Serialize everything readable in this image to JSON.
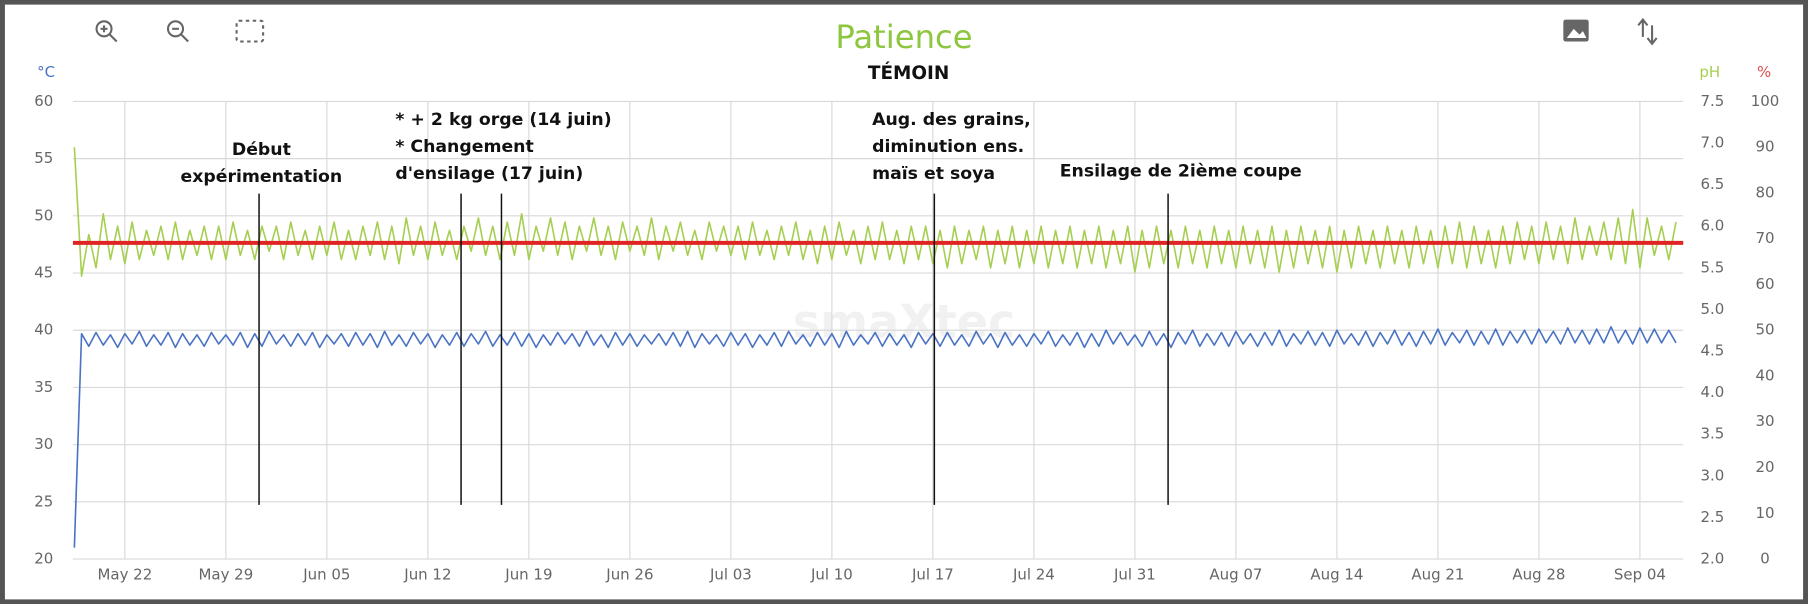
{
  "chart_data": {
    "type": "line",
    "title": "Patience",
    "subtitle": "TÉMOIN",
    "watermark": "smaXtec",
    "y_label": "°C",
    "y2_label": "pH",
    "y3_label": "%",
    "grid": true,
    "xlim": [
      138.4,
      250
    ],
    "xticks": [
      {
        "value": 142,
        "label": "May 22"
      },
      {
        "value": 149,
        "label": "May 29"
      },
      {
        "value": 156,
        "label": "Jun 05"
      },
      {
        "value": 163,
        "label": "Jun 12"
      },
      {
        "value": 170,
        "label": "Jun 19"
      },
      {
        "value": 177,
        "label": "Jun 26"
      },
      {
        "value": 184,
        "label": "Jul 03"
      },
      {
        "value": 191,
        "label": "Jul 10"
      },
      {
        "value": 198,
        "label": "Jul 17"
      },
      {
        "value": 205,
        "label": "Jul 24"
      },
      {
        "value": 212,
        "label": "Jul 31"
      },
      {
        "value": 219,
        "label": "Aug 07"
      },
      {
        "value": 226,
        "label": "Aug 14"
      },
      {
        "value": 233,
        "label": "Aug 21"
      },
      {
        "value": 240,
        "label": "Aug 28"
      },
      {
        "value": 247,
        "label": "Sep 04"
      }
    ],
    "ylim": [
      20,
      60
    ],
    "yticks": [
      20,
      25,
      30,
      35,
      40,
      45,
      50,
      55,
      60
    ],
    "y2lim": [
      2,
      7.5
    ],
    "y2ticks": [
      {
        "value": 2,
        "label": "2.0"
      },
      2.5,
      {
        "value": 3,
        "label": "3.0"
      },
      3.5,
      {
        "value": 4,
        "label": "4.0"
      },
      4.5,
      {
        "value": 5,
        "label": "5.0"
      },
      5.5,
      {
        "value": 6,
        "label": "6.0"
      },
      6.5,
      {
        "value": 7,
        "label": "7.0"
      },
      7.5
    ],
    "y3lim": [
      0,
      100
    ],
    "y3ticks": [
      0,
      10,
      20,
      30,
      40,
      50,
      60,
      70,
      80,
      90,
      100
    ],
    "reference_line": {
      "value": 5.8,
      "axis": "y2",
      "color": "#e02424"
    },
    "annotations": [
      {
        "lines": [
          "Début",
          "expérimentation"
        ],
        "x": [
          151.3
        ]
      },
      {
        "lines": [
          "* + 2 kg orge (14 juin)",
          "* Changement",
          "d'ensilage (17 juin)"
        ],
        "x": [
          165.3,
          168.1
        ]
      },
      {
        "lines": [
          "Aug. des grains,",
          "diminution ens.",
          "maïs et soya"
        ],
        "x": [
          198.1
        ]
      },
      {
        "lines": [
          "Ensilage de 2ième coupe"
        ],
        "x": [
          214.3
        ]
      }
    ],
    "x": [
      138.5,
      139,
      139.5,
      140,
      140.5,
      141,
      141.5,
      142,
      142.5,
      143,
      143.5,
      144,
      144.5,
      145,
      145.5,
      146,
      146.5,
      147,
      147.5,
      148,
      148.5,
      149,
      149.5,
      150,
      150.5,
      151,
      151.5,
      152,
      152.5,
      153,
      153.5,
      154,
      154.5,
      155,
      155.5,
      156,
      156.5,
      157,
      157.5,
      158,
      158.5,
      159,
      159.5,
      160,
      160.5,
      161,
      161.5,
      162,
      162.5,
      163,
      163.5,
      164,
      164.5,
      165,
      165.5,
      166,
      166.5,
      167,
      167.5,
      168,
      168.5,
      169,
      169.5,
      170,
      170.5,
      171,
      171.5,
      172,
      172.5,
      173,
      173.5,
      174,
      174.5,
      175,
      175.5,
      176,
      176.5,
      177,
      177.5,
      178,
      178.5,
      179,
      179.5,
      180,
      180.5,
      181,
      181.5,
      182,
      182.5,
      183,
      183.5,
      184,
      184.5,
      185,
      185.5,
      186,
      186.5,
      187,
      187.5,
      188,
      188.5,
      189,
      189.5,
      190,
      190.5,
      191,
      191.5,
      192,
      192.5,
      193,
      193.5,
      194,
      194.5,
      195,
      195.5,
      196,
      196.5,
      197,
      197.5,
      198,
      198.5,
      199,
      199.5,
      200,
      200.5,
      201,
      201.5,
      202,
      202.5,
      203,
      203.5,
      204,
      204.5,
      205,
      205.5,
      206,
      206.5,
      207,
      207.5,
      208,
      208.5,
      209,
      209.5,
      210,
      210.5,
      211,
      211.5,
      212,
      212.5,
      213,
      213.5,
      214,
      214.5,
      215,
      215.5,
      216,
      216.5,
      217,
      217.5,
      218,
      218.5,
      219,
      219.5,
      220,
      220.5,
      221,
      221.5,
      222,
      222.5,
      223,
      223.5,
      224,
      224.5,
      225,
      225.5,
      226,
      226.5,
      227,
      227.5,
      228,
      228.5,
      229,
      229.5,
      230,
      230.5,
      231,
      231.5,
      232,
      232.5,
      233,
      233.5,
      234,
      234.5,
      235,
      235.5,
      236,
      236.5,
      237,
      237.5,
      238,
      238.5,
      239,
      239.5,
      240,
      240.5,
      241,
      241.5,
      242,
      242.5,
      243,
      243.5,
      244,
      244.5,
      245,
      245.5,
      246,
      246.5,
      247,
      247.5,
      248,
      248.5,
      249,
      249.5
    ],
    "series": [
      {
        "name": "pH",
        "axis": "y2",
        "color": "#a6cf52",
        "values": [
          6.95,
          5.4,
          5.9,
          5.5,
          6.15,
          5.6,
          6.0,
          5.55,
          6.05,
          5.6,
          5.95,
          5.65,
          6.0,
          5.6,
          6.05,
          5.6,
          5.95,
          5.65,
          6.0,
          5.6,
          6.0,
          5.6,
          6.05,
          5.65,
          5.95,
          5.6,
          6.0,
          5.7,
          6.0,
          5.6,
          6.05,
          5.65,
          5.95,
          5.6,
          6.0,
          5.65,
          6.05,
          5.6,
          5.95,
          5.6,
          6.0,
          5.65,
          6.05,
          5.6,
          6.0,
          5.55,
          6.1,
          5.65,
          6.0,
          5.6,
          6.05,
          5.65,
          5.95,
          5.6,
          6.0,
          5.7,
          6.1,
          5.65,
          6.0,
          5.6,
          6.05,
          5.65,
          6.15,
          5.6,
          6.0,
          5.7,
          6.1,
          5.65,
          6.05,
          5.6,
          6.0,
          5.7,
          6.1,
          5.65,
          6.0,
          5.6,
          6.05,
          5.7,
          6.0,
          5.65,
          6.1,
          5.6,
          6.0,
          5.7,
          6.05,
          5.65,
          5.95,
          5.6,
          6.05,
          5.7,
          6.0,
          5.65,
          6.0,
          5.6,
          6.05,
          5.65,
          5.95,
          5.6,
          6.0,
          5.65,
          6.05,
          5.6,
          5.95,
          5.55,
          6.0,
          5.6,
          6.05,
          5.65,
          5.95,
          5.55,
          6.0,
          5.6,
          6.05,
          5.6,
          5.95,
          5.55,
          6.0,
          5.6,
          6.0,
          5.55,
          5.95,
          5.5,
          6.0,
          5.55,
          5.95,
          5.6,
          6.0,
          5.5,
          5.95,
          5.55,
          6.0,
          5.5,
          5.95,
          5.55,
          6.0,
          5.5,
          5.95,
          5.55,
          6.0,
          5.5,
          5.95,
          5.55,
          6.0,
          5.5,
          5.95,
          5.55,
          6.0,
          5.45,
          5.95,
          5.5,
          6.0,
          5.55,
          5.95,
          5.5,
          6.0,
          5.55,
          5.95,
          5.5,
          6.0,
          5.55,
          5.95,
          5.5,
          6.0,
          5.55,
          5.95,
          5.5,
          6.0,
          5.45,
          5.95,
          5.5,
          6.0,
          5.55,
          5.95,
          5.5,
          6.0,
          5.45,
          5.95,
          5.5,
          6.0,
          5.55,
          5.95,
          5.5,
          6.0,
          5.55,
          5.95,
          5.5,
          6.0,
          5.55,
          5.95,
          5.5,
          6.0,
          5.55,
          6.05,
          5.5,
          6.0,
          5.55,
          5.95,
          5.5,
          6.0,
          5.55,
          6.05,
          5.6,
          6.0,
          5.55,
          6.05,
          5.6,
          6.0,
          5.55,
          6.1,
          5.6,
          6.0,
          5.65,
          6.05,
          5.6,
          6.1,
          5.55,
          6.2,
          5.5,
          6.1,
          5.65,
          6.0,
          5.6,
          6.05
        ]
      },
      {
        "name": "°C",
        "axis": "y",
        "color": "#4a73c4",
        "values": [
          21,
          39.7,
          38.6,
          39.8,
          38.7,
          39.6,
          38.5,
          39.7,
          38.8,
          39.9,
          38.6,
          39.6,
          38.7,
          39.8,
          38.5,
          39.7,
          38.7,
          39.6,
          38.6,
          39.8,
          38.8,
          39.6,
          38.7,
          39.8,
          38.5,
          39.7,
          38.6,
          39.9,
          38.8,
          39.6,
          38.6,
          39.7,
          38.7,
          39.8,
          38.5,
          39.6,
          38.8,
          39.7,
          38.6,
          39.8,
          38.7,
          39.7,
          38.5,
          39.9,
          38.7,
          39.6,
          38.6,
          39.8,
          38.8,
          39.7,
          38.5,
          39.6,
          38.7,
          39.8,
          38.6,
          39.7,
          38.8,
          39.9,
          38.6,
          39.6,
          38.7,
          39.8,
          38.6,
          39.7,
          38.5,
          39.6,
          38.7,
          39.8,
          38.8,
          39.7,
          38.6,
          39.9,
          38.7,
          39.6,
          38.5,
          39.8,
          38.7,
          39.7,
          38.6,
          39.6,
          38.8,
          39.7,
          38.7,
          39.8,
          38.6,
          39.9,
          38.5,
          39.7,
          38.8,
          39.6,
          38.6,
          39.8,
          38.7,
          39.7,
          38.5,
          39.6,
          38.7,
          39.8,
          38.6,
          39.9,
          38.8,
          39.6,
          38.6,
          39.8,
          38.7,
          39.7,
          38.5,
          39.9,
          38.7,
          39.6,
          38.8,
          39.8,
          38.6,
          39.7,
          38.7,
          39.6,
          38.5,
          39.8,
          38.8,
          39.7,
          38.6,
          39.8,
          38.7,
          39.6,
          38.6,
          39.9,
          38.8,
          39.7,
          38.5,
          39.8,
          38.7,
          39.6,
          38.6,
          39.7,
          38.8,
          39.9,
          38.6,
          39.6,
          38.7,
          39.8,
          38.5,
          39.7,
          38.6,
          40.0,
          38.8,
          39.8,
          38.7,
          39.6,
          38.6,
          39.9,
          38.7,
          39.7,
          38.5,
          39.8,
          38.8,
          40.0,
          38.6,
          39.7,
          38.7,
          39.8,
          38.6,
          39.9,
          38.8,
          39.7,
          38.6,
          39.8,
          38.7,
          40.0,
          38.6,
          39.7,
          38.8,
          39.9,
          38.7,
          39.8,
          38.6,
          40.0,
          38.8,
          39.7,
          38.7,
          39.9,
          38.6,
          39.8,
          38.8,
          40.0,
          38.7,
          39.8,
          38.6,
          39.9,
          38.8,
          40.1,
          38.7,
          39.8,
          38.9,
          40.0,
          38.7,
          39.9,
          38.8,
          40.1,
          38.7,
          39.9,
          38.9,
          40.0,
          38.8,
          40.1,
          38.9,
          39.9,
          38.8,
          40.2,
          38.9,
          40.0,
          38.8,
          40.1,
          38.9,
          40.3,
          38.9,
          40.0,
          38.8,
          40.2,
          38.9,
          40.1,
          38.9,
          40.0,
          38.9
        ]
      }
    ]
  }
}
